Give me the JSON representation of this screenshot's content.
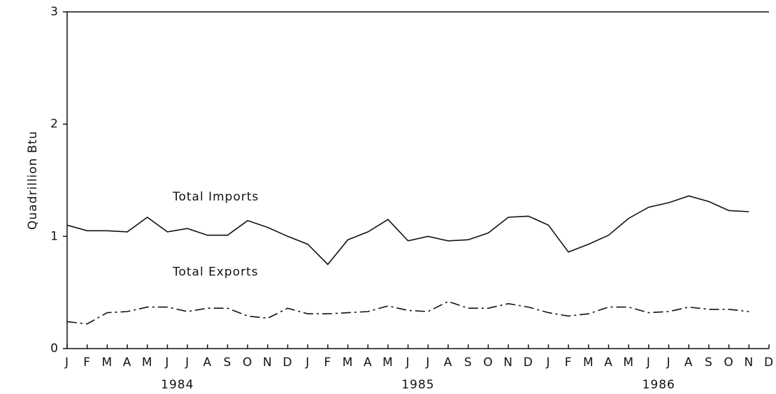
{
  "chart_data": {
    "type": "line",
    "ylabel": "Quadrillion Btu",
    "categories": [
      "J",
      "F",
      "M",
      "A",
      "M",
      "J",
      "J",
      "A",
      "S",
      "O",
      "N",
      "D",
      "J",
      "F",
      "M",
      "A",
      "M",
      "J",
      "J",
      "A",
      "S",
      "O",
      "N",
      "D",
      "J",
      "F",
      "M",
      "A",
      "M",
      "J",
      "J",
      "A",
      "S",
      "O",
      "N",
      "D"
    ],
    "years": [
      "1984",
      "1985",
      "1986"
    ],
    "ylim": [
      0,
      3
    ],
    "yticks": [
      0,
      1,
      2,
      3
    ],
    "grid": false,
    "series": [
      {
        "name": "Total Imports",
        "color": "#111111",
        "style": "solid",
        "values": [
          1.1,
          1.05,
          1.05,
          1.04,
          1.17,
          1.04,
          1.07,
          1.01,
          1.01,
          1.14,
          1.08,
          1.0,
          0.93,
          0.75,
          0.97,
          1.04,
          1.15,
          0.96,
          1.0,
          0.96,
          0.97,
          1.03,
          1.17,
          1.18,
          1.1,
          0.86,
          0.93,
          1.01,
          1.16,
          1.26,
          1.3,
          1.36,
          1.31,
          1.23,
          1.22,
          null
        ]
      },
      {
        "name": "Total Exports",
        "color": "#111111",
        "style": "dashdot",
        "values": [
          0.24,
          0.22,
          0.32,
          0.33,
          0.37,
          0.37,
          0.33,
          0.36,
          0.36,
          0.29,
          0.27,
          0.36,
          0.31,
          0.31,
          0.32,
          0.33,
          0.38,
          0.34,
          0.33,
          0.42,
          0.36,
          0.36,
          0.4,
          0.37,
          0.32,
          0.29,
          0.31,
          0.37,
          0.37,
          0.32,
          0.33,
          0.37,
          0.35,
          0.35,
          0.33,
          null
        ]
      }
    ]
  }
}
